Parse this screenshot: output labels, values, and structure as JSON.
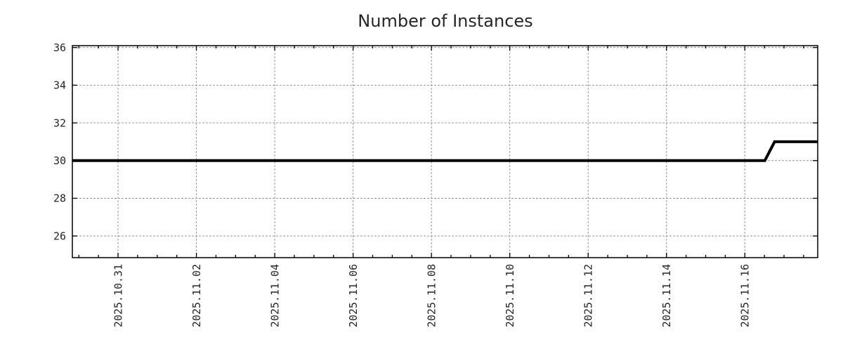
{
  "chart_data": {
    "type": "line",
    "title": "Number of Instances",
    "subtitle": "",
    "legend": "none",
    "grid": true,
    "x_axis": {
      "tick_labels": [
        "2025.10.31",
        "2025.11.02",
        "2025.11.04",
        "2025.11.06",
        "2025.11.08",
        "2025.11.10",
        "2025.11.12",
        "2025.11.14",
        "2025.11.16"
      ],
      "tick_day_offsets": [
        0,
        2,
        4,
        6,
        8,
        10,
        12,
        14,
        16
      ],
      "minor_tick_step_days": 0.5,
      "range_days": [
        -1.166,
        17.86
      ],
      "label_rotation_deg": -90
    },
    "y_axis": {
      "tick_values": [
        26,
        28,
        30,
        32,
        34,
        36
      ],
      "tick_labels": [
        "26",
        "28",
        "30",
        "32",
        "34",
        "36"
      ],
      "range": [
        24.85,
        36.1
      ]
    },
    "series": [
      {
        "name": "instances",
        "color": "#000000",
        "stroke_width": 4,
        "points": [
          {
            "day_offset": -1.166,
            "value": 30,
            "approx_date": "2025-10-29"
          },
          {
            "day_offset": 16.51,
            "value": 30,
            "approx_date": "2025-11-16 ~12:00"
          },
          {
            "day_offset": 16.76,
            "value": 31,
            "approx_date": "2025-11-16 ~18:00"
          },
          {
            "day_offset": 17.86,
            "value": 31,
            "approx_date": "2025-11-17"
          }
        ]
      }
    ],
    "colors": {
      "background": "#ffffff",
      "axis": "#000000",
      "grid": "#999999",
      "text": "#262626",
      "line": "#000000"
    }
  }
}
